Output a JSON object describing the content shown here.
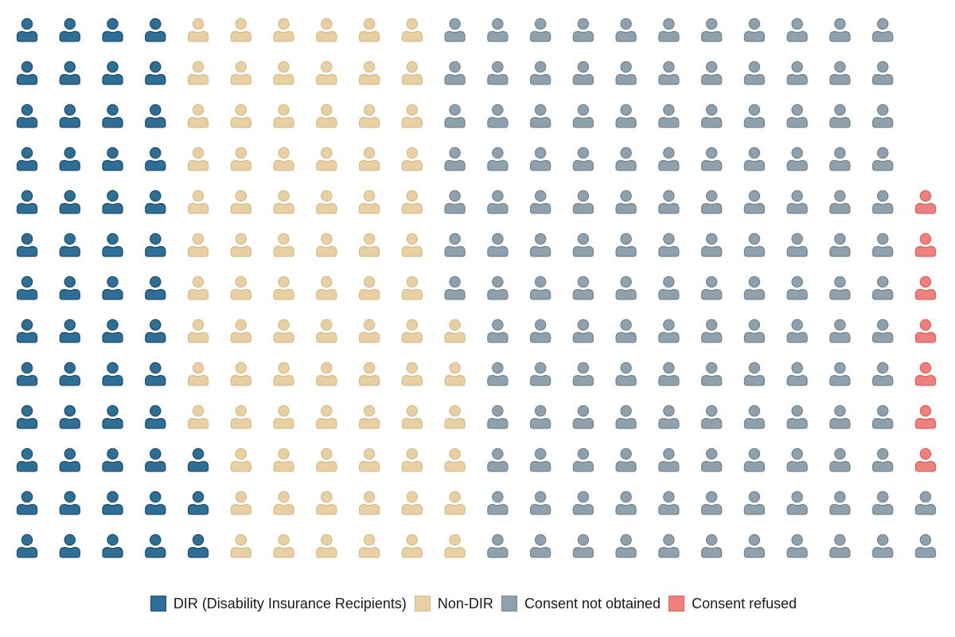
{
  "chart_data": {
    "type": "waffle",
    "title": "",
    "grid": {
      "columns": 22,
      "rows": 13
    },
    "fill_order": "column-major, bottom-to-top, left-to-right",
    "icon": "person-icon",
    "total": 282,
    "series": [
      {
        "key": "dir",
        "name": "DIR (Disability Insurance Recipients)",
        "value": 55,
        "color": "#2e6f98",
        "stroke": "#1f4f70"
      },
      {
        "key": "nondir",
        "name": "Non-DIR",
        "value": 81,
        "color": "#e9d0a2",
        "stroke": "#d9bd8c"
      },
      {
        "key": "notobtained",
        "name": "Consent not obtained",
        "value": 139,
        "color": "#8fa1ad",
        "stroke": "#738793"
      },
      {
        "key": "refused",
        "name": "Consent refused",
        "value": 7,
        "color": "#f0807c",
        "stroke": "#e0625e"
      }
    ],
    "legend_position": "bottom",
    "xlabel": "",
    "ylabel": ""
  }
}
